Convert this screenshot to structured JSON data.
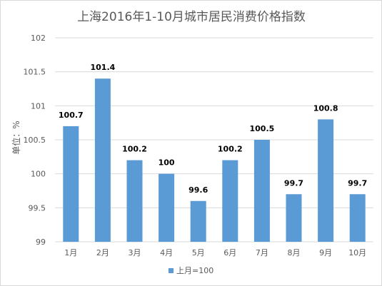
{
  "chart_data": {
    "type": "bar",
    "title": "上海2016年1-10月城市居民消费价格指数",
    "xlabel": "",
    "ylabel": "单位：%",
    "categories": [
      "1月",
      "2月",
      "3月",
      "4月",
      "5月",
      "6月",
      "7月",
      "8月",
      "9月",
      "10月"
    ],
    "series": [
      {
        "name": "上月=100",
        "values": [
          100.7,
          101.4,
          100.2,
          100,
          99.6,
          100.2,
          100.5,
          99.7,
          100.8,
          99.7
        ],
        "value_labels": [
          "100.7",
          "101.4",
          "100.2",
          "100",
          "99.6",
          "100.2",
          "100.5",
          "99.7",
          "100.8",
          "99.7"
        ],
        "color": "#5b9bd5"
      }
    ],
    "ylim": [
      99,
      102
    ],
    "yticks": [
      99,
      99.5,
      100,
      100.5,
      101,
      101.5,
      102
    ],
    "ytick_labels": [
      "99",
      "99.5",
      "100",
      "100.5",
      "101",
      "101.5",
      "102"
    ],
    "grid": true,
    "legend_position": "bottom",
    "gridline_color": "#d9d9d9"
  }
}
